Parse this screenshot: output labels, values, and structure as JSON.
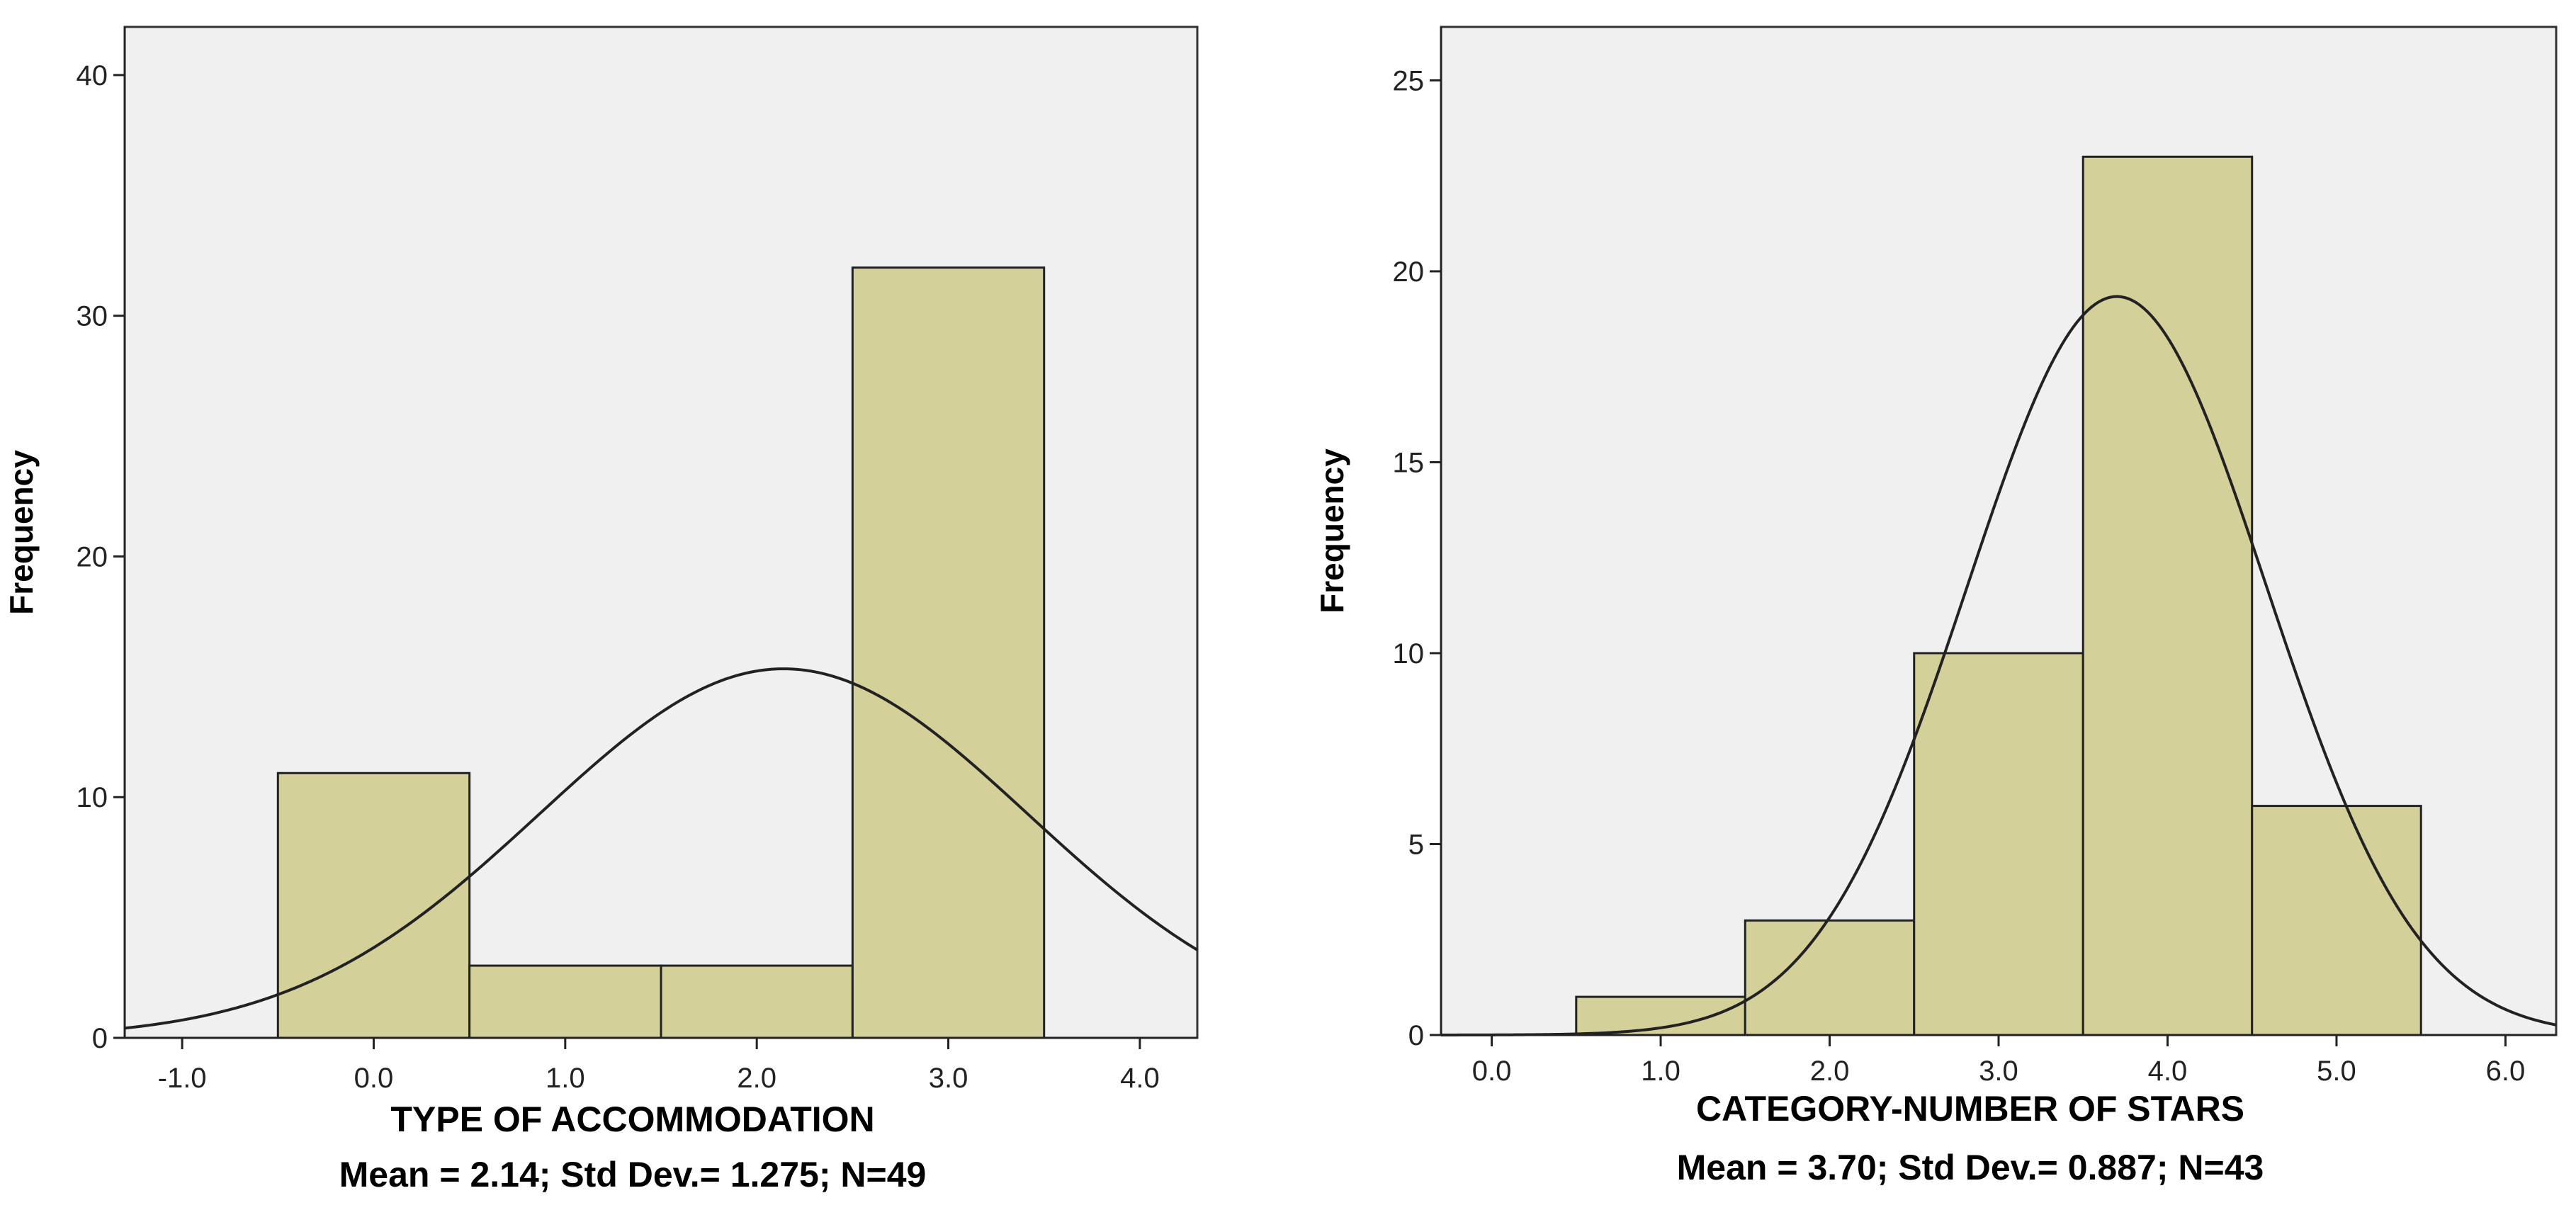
{
  "colors": {
    "background": "#ffffff",
    "plot_background": "#f0f0f0",
    "bar_fill": "#d4d09a",
    "bar_stroke": "#222222",
    "curve": "#222222",
    "text": "#000000"
  },
  "chart_data": [
    {
      "type": "bar",
      "subtype": "histogram_with_normal_curve",
      "title": "",
      "xlabel": "TYPE OF ACCOMMODATION",
      "ylabel": "Frequency",
      "stats_label": "Mean = 2.14; Std Dev.= 1.275; N=49",
      "mean": 2.14,
      "std_dev": 1.275,
      "n": 49,
      "bin_width": 1.0,
      "xlim": [
        -1.3,
        4.3
      ],
      "ylim": [
        0,
        42
      ],
      "x_ticks": [
        -1.0,
        0.0,
        1.0,
        2.0,
        3.0,
        4.0
      ],
      "x_tick_labels": [
        "-1.0",
        "0.0",
        "1.0",
        "2.0",
        "3.0",
        "4.0"
      ],
      "y_ticks": [
        0,
        10,
        20,
        30,
        40
      ],
      "y_tick_labels": [
        "0",
        "10",
        "20",
        "30",
        "40"
      ],
      "bins": [
        {
          "x0": -0.5,
          "x1": 0.5,
          "count": 11
        },
        {
          "x0": 0.5,
          "x1": 1.5,
          "count": 3
        },
        {
          "x0": 1.5,
          "x1": 2.5,
          "count": 3
        },
        {
          "x0": 2.5,
          "x1": 3.5,
          "count": 32
        }
      ],
      "grid": false
    },
    {
      "type": "bar",
      "subtype": "histogram_with_normal_curve",
      "title": "",
      "xlabel": "CATEGORY-NUMBER OF STARS",
      "ylabel": "Frequency",
      "stats_label": "Mean = 3.70; Std Dev.= 0.887; N=43",
      "mean": 3.7,
      "std_dev": 0.887,
      "n": 43,
      "bin_width": 1.0,
      "xlim": [
        -0.3,
        6.3
      ],
      "ylim": [
        0,
        26.4
      ],
      "x_ticks": [
        0.0,
        1.0,
        2.0,
        3.0,
        4.0,
        5.0,
        6.0
      ],
      "x_tick_labels": [
        "0.0",
        "1.0",
        "2.0",
        "3.0",
        "4.0",
        "5.0",
        "6.0"
      ],
      "y_ticks": [
        0,
        5,
        10,
        15,
        20,
        25
      ],
      "y_tick_labels": [
        "0",
        "5",
        "10",
        "15",
        "20",
        "25"
      ],
      "bins": [
        {
          "x0": 0.5,
          "x1": 1.5,
          "count": 1
        },
        {
          "x0": 1.5,
          "x1": 2.5,
          "count": 3
        },
        {
          "x0": 2.5,
          "x1": 3.5,
          "count": 10
        },
        {
          "x0": 3.5,
          "x1": 4.5,
          "count": 23
        },
        {
          "x0": 4.5,
          "x1": 5.5,
          "count": 6
        }
      ],
      "grid": false
    }
  ]
}
